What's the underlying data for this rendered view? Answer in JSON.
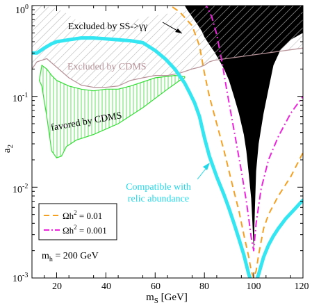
{
  "chart_data": {
    "type": "line",
    "xlabel": "m_S [GeV]",
    "ylabel": "a_2",
    "xlim": [
      10,
      120
    ],
    "ylim_log10": [
      -3,
      0
    ],
    "y_scale": "log",
    "x_ticks": [
      20,
      40,
      60,
      80,
      100,
      120
    ],
    "x_tick_labels": [
      "20",
      "40",
      "60",
      "80",
      "100",
      "120"
    ],
    "y_ticks_log10": [
      -3,
      -2,
      -1,
      0
    ],
    "colors": {
      "excluded_ss": "#000000",
      "excluded_cdms_hatch": "#b8b8b8",
      "excluded_cdms_line": "#b8949a",
      "favored_cdms": "#33dd33",
      "relic": "#33e6f2",
      "dash_001": "#f5a021",
      "dashdot_0001": "#ee22dd"
    },
    "annotations": {
      "excluded_ss": "Excluded by SS->γγ",
      "excluded_cdms": "Excluded by CDMS",
      "favored_cdms": "favored by CDMS",
      "relic_line1": "Compatible with",
      "relic_line2": "relic abundance",
      "mh": "m_h = 200 GeV"
    },
    "legend": {
      "placement": "bottom-left",
      "entries": [
        {
          "label": "Ωh² = 0.01",
          "color": "#f5a021",
          "style": "dashed"
        },
        {
          "label": "Ωh² = 0.001",
          "color": "#ee22dd",
          "style": "dash-dot"
        }
      ]
    },
    "series": [
      {
        "name": "Ωh² = 0.01",
        "style": "dashed",
        "x": [
          60,
          65,
          70,
          75,
          78,
          80,
          82,
          85,
          88,
          90,
          92,
          94,
          96,
          98,
          99,
          100,
          101,
          102,
          104,
          106,
          110,
          115,
          120
        ],
        "y": [
          1.3,
          1.05,
          0.85,
          0.6,
          0.36,
          0.18,
          0.1,
          0.05,
          0.025,
          0.015,
          0.009,
          0.0055,
          0.003,
          0.0017,
          0.0012,
          0.001,
          0.0012,
          0.0018,
          0.0035,
          0.005,
          0.008,
          0.013,
          0.024
        ]
      },
      {
        "name": "Ωh² = 0.001",
        "style": "dash-dot",
        "x": [
          80,
          83,
          85,
          87,
          89,
          91,
          93,
          95,
          97,
          98,
          99,
          100,
          101,
          103,
          106,
          110,
          115,
          120
        ],
        "y": [
          1.1,
          0.75,
          0.48,
          0.25,
          0.12,
          0.06,
          0.03,
          0.015,
          0.007,
          0.0045,
          0.0028,
          0.002,
          0.004,
          0.0095,
          0.02,
          0.036,
          0.065,
          0.1
        ]
      },
      {
        "name": "",
        "style": "thick",
        "x": [
          10,
          12,
          15,
          18,
          20,
          25,
          30,
          35,
          40,
          45,
          50,
          55,
          60,
          64,
          68,
          72,
          74,
          76,
          78,
          80,
          82,
          85,
          88,
          90,
          92,
          94,
          96,
          97,
          98,
          98.5,
          99
        ],
        "y": [
          0.3,
          0.3,
          0.34,
          0.38,
          0.4,
          0.42,
          0.44,
          0.44,
          0.43,
          0.42,
          0.41,
          0.39,
          0.32,
          0.26,
          0.2,
          0.14,
          0.11,
          0.085,
          0.06,
          0.035,
          0.022,
          0.013,
          0.0082,
          0.0058,
          0.004,
          0.0027,
          0.0018,
          0.0014,
          0.0011,
          0.001,
          0.0009
        ]
      },
      {
        "name": "",
        "style": "thick",
        "x": [
          101,
          102,
          104,
          106,
          108,
          110,
          113,
          116,
          118,
          120
        ],
        "y": [
          0.0009,
          0.0011,
          0.0017,
          0.0023,
          0.0029,
          0.0035,
          0.0045,
          0.0055,
          0.0063,
          0.0072
        ]
      }
    ],
    "regions": [
      {
        "name": "Excluded by SS->γγ",
        "fill": "solid",
        "polygon_x": [
          72,
          73,
          75,
          77,
          79,
          80,
          82,
          84,
          86,
          88,
          90,
          92,
          94,
          96,
          97,
          98,
          99,
          99.5,
          100,
          100.5,
          101,
          102,
          104,
          106,
          108,
          111,
          115,
          120,
          120,
          72
        ],
        "polygon_y": [
          1.0,
          0.9,
          0.75,
          0.63,
          0.52,
          0.45,
          0.37,
          0.31,
          0.25,
          0.2,
          0.15,
          0.1,
          0.065,
          0.038,
          0.025,
          0.014,
          0.0075,
          0.004,
          0.002,
          0.006,
          0.015,
          0.03,
          0.065,
          0.12,
          0.22,
          0.33,
          0.42,
          0.5,
          1.0,
          1.0
        ]
      },
      {
        "name": "Excluded by CDMS",
        "fill": "hatch",
        "polygon_x": [
          10,
          12,
          16,
          20,
          25,
          30,
          35,
          40,
          45,
          50,
          55,
          60,
          65,
          70,
          75,
          78,
          80,
          82,
          84,
          120,
          120,
          80,
          78,
          75,
          72,
          69,
          66,
          63,
          60,
          57,
          54,
          51,
          48,
          45,
          42,
          39,
          36,
          33,
          30,
          27,
          24,
          21,
          18,
          15,
          12,
          10
        ],
        "polygon_y": [
          0.2,
          0.24,
          0.26,
          0.21,
          0.16,
          0.133,
          0.126,
          0.126,
          0.13,
          0.15,
          0.16,
          0.17,
          0.17,
          0.18,
          0.2,
          0.21,
          0.22,
          0.24,
          0.25,
          0.34,
          1.0,
          1.0,
          0.92,
          0.9,
          0.88,
          0.85,
          0.82,
          0.8,
          0.78,
          0.75,
          0.72,
          0.69,
          0.66,
          0.63,
          0.6,
          0.58,
          0.57,
          0.6,
          0.65,
          0.72,
          0.82,
          0.9,
          0.95,
          1.0,
          1.0,
          1.0
        ]
      },
      {
        "name": "favored by CDMS",
        "fill": "vertical-hatch",
        "polygon_x": [
          13,
          14,
          16,
          18,
          20,
          22,
          24,
          28,
          35,
          45,
          55,
          65,
          70,
          72,
          72,
          68,
          60,
          50,
          45,
          40,
          35,
          30,
          25,
          20,
          18,
          16,
          14,
          13
        ],
        "polygon_y": [
          0.15,
          0.13,
          0.06,
          0.025,
          0.021,
          0.022,
          0.028,
          0.033,
          0.038,
          0.05,
          0.075,
          0.12,
          0.15,
          0.16,
          0.165,
          0.17,
          0.16,
          0.13,
          0.12,
          0.12,
          0.115,
          0.12,
          0.13,
          0.15,
          0.17,
          0.2,
          0.22,
          0.15
        ]
      }
    ]
  }
}
